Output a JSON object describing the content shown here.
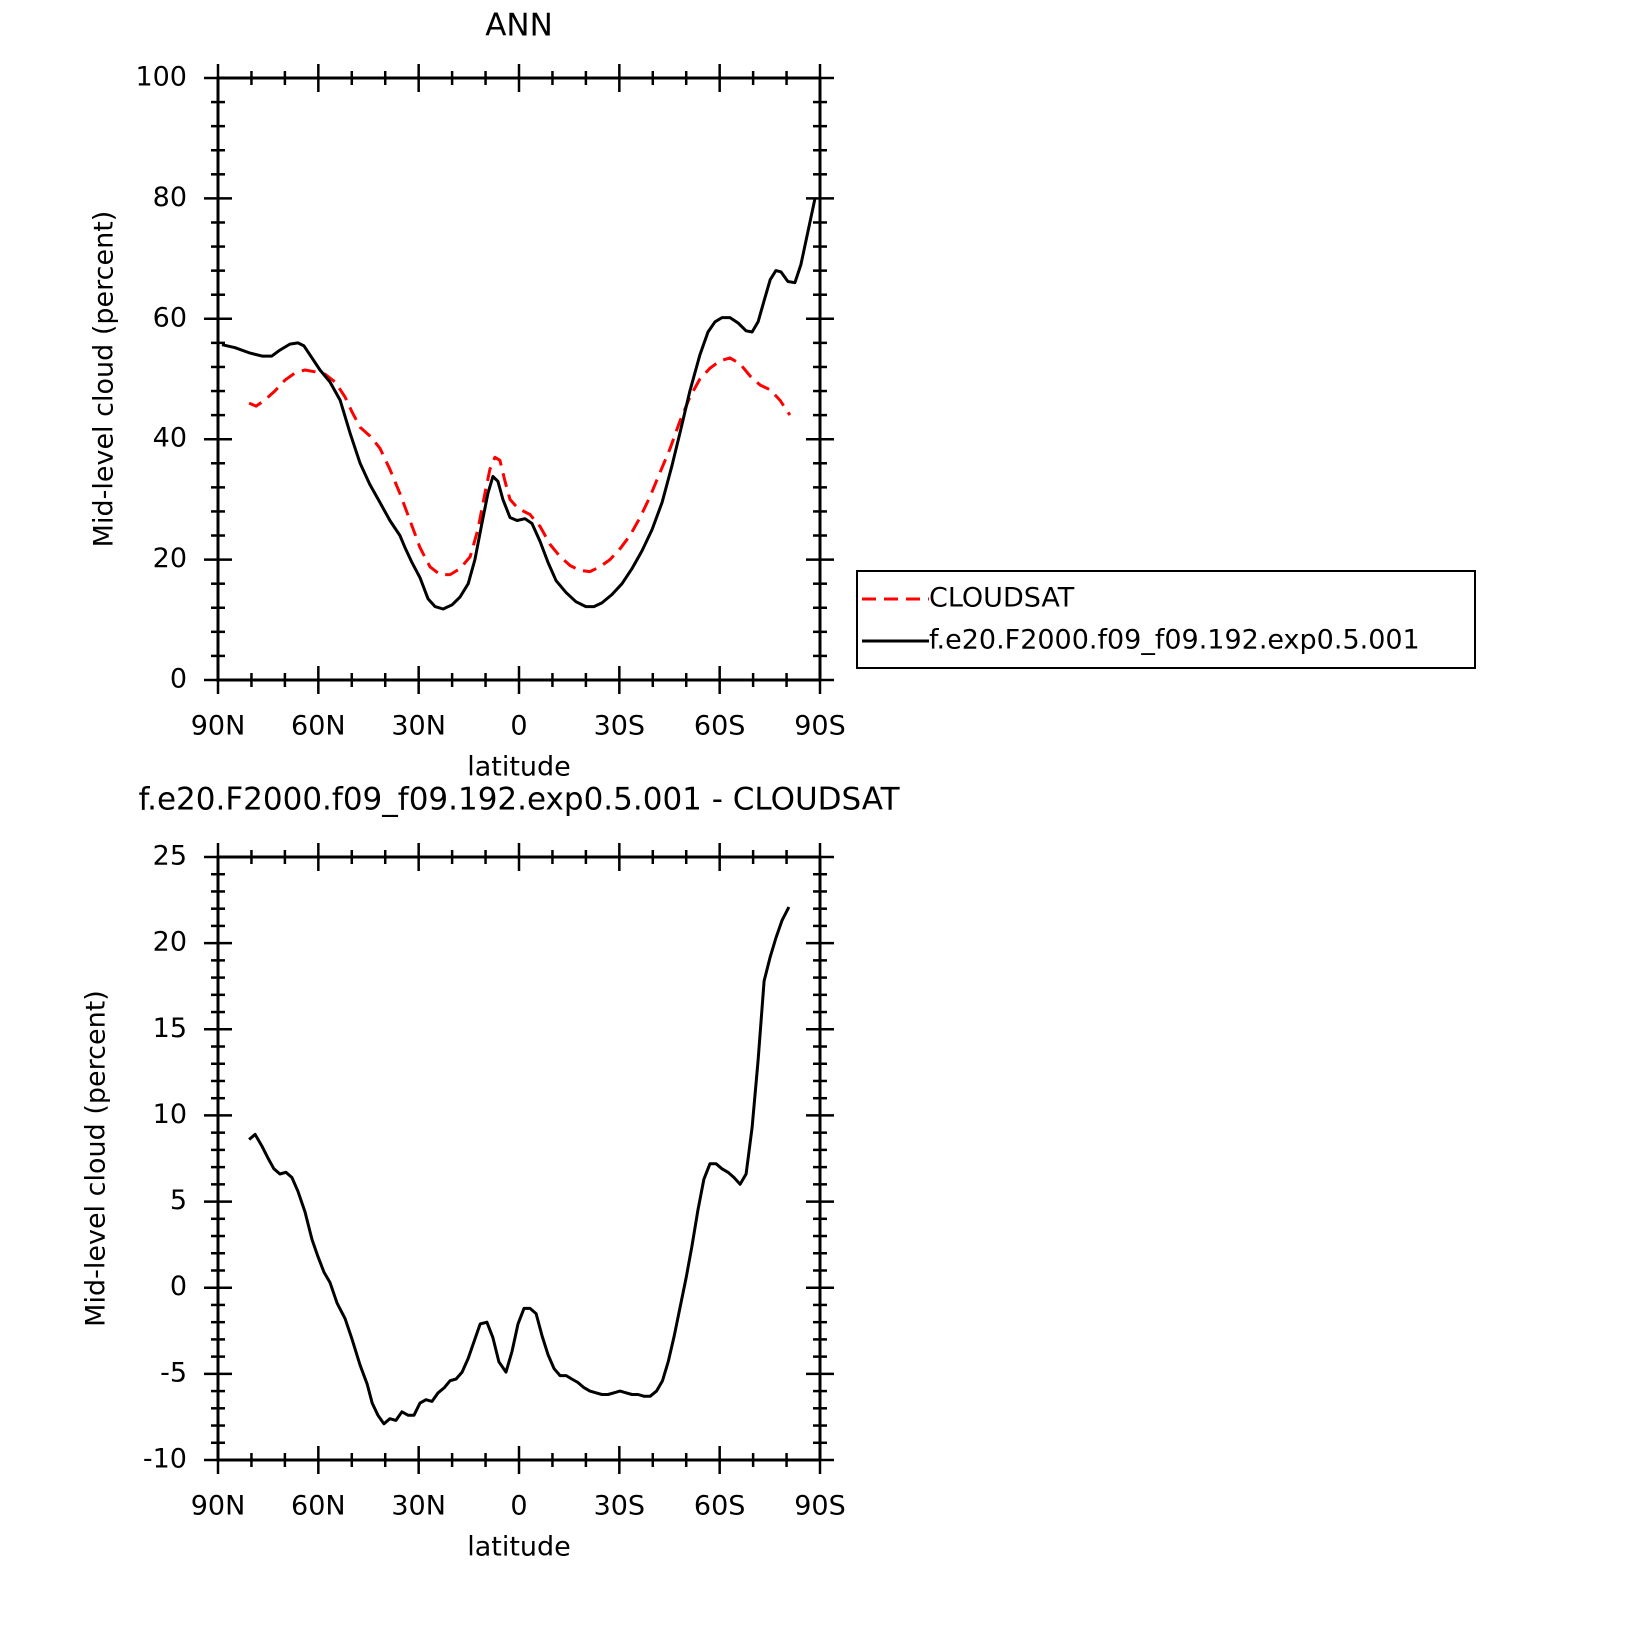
{
  "chart_data": [
    {
      "type": "line",
      "title": "ANN",
      "x_label": "latitude",
      "y_label": "Mid-level cloud (percent)",
      "xlim": [
        90,
        -90
      ],
      "xticks": [
        {
          "value": 90,
          "label": "90N"
        },
        {
          "value": 60,
          "label": "60N"
        },
        {
          "value": 30,
          "label": "30N"
        },
        0,
        {
          "value": -30,
          "label": "30S"
        },
        {
          "value": -60,
          "label": "60S"
        },
        {
          "value": -90,
          "label": "90S"
        }
      ],
      "ylim": [
        0,
        100
      ],
      "yticks": [
        0,
        20,
        40,
        60,
        80,
        100
      ],
      "legend": "right",
      "series": [
        {
          "name": "CLOUDSAT",
          "color": "#ff0000",
          "line_style": "dashed",
          "x": [
            80.7,
            78.6,
            76.0,
            73.0,
            70.0,
            67.0,
            64.0,
            61.0,
            58.0,
            55.0,
            52.0,
            49.9,
            47.5,
            44.5,
            41.6,
            38.6,
            35.6,
            32.6,
            29.6,
            26.6,
            23.6,
            20.6,
            17.6,
            14.6,
            12.3,
            10.2,
            8.7,
            7.2,
            5.7,
            4.2,
            2.7,
            0.3,
            -3.3,
            -6.3,
            -9.3,
            -12.3,
            -15.3,
            -18.2,
            -21.2,
            -24.2,
            -27.2,
            -30.2,
            -33.2,
            -36.2,
            -39.2,
            -42.2,
            -45.2,
            -48.1,
            -51.1,
            -54.1,
            -57.1,
            -60.1,
            -63.1,
            -66.1,
            -69.1,
            -72.1,
            -75.1,
            -78.0,
            -81.0
          ],
          "values": [
            46,
            45.5,
            46.5,
            48,
            49.8,
            51,
            51.5,
            51.2,
            50.8,
            49.5,
            47,
            44.5,
            42,
            40.5,
            38.5,
            35,
            31,
            26.5,
            22,
            18.8,
            17.5,
            17.5,
            18.5,
            20.5,
            25,
            31,
            35,
            37,
            36.5,
            33,
            30,
            28.5,
            27.5,
            25.5,
            22.5,
            20.5,
            19,
            18.2,
            18,
            18.8,
            20,
            21.8,
            24,
            27,
            30.5,
            34.5,
            38.5,
            43,
            47,
            50,
            51.8,
            53,
            53.5,
            52.5,
            50.5,
            49,
            48.2,
            46.5,
            44
          ]
        },
        {
          "name": "f.e20.F2000.f09_f09.192.exp0.5.001",
          "color": "#000000",
          "line_style": "solid",
          "x": [
            88.8,
            84.9,
            80.4,
            76.8,
            73.9,
            71.5,
            68.5,
            66.1,
            64.3,
            61.9,
            59.5,
            56.5,
            53.5,
            50.5,
            47.5,
            44.6,
            41.6,
            38.6,
            35.6,
            34.1,
            32.0,
            29.6,
            27.2,
            25.1,
            22.7,
            20.0,
            17.6,
            15.2,
            13.2,
            11.1,
            9.3,
            7.8,
            6.3,
            4.8,
            2.7,
            0.6,
            -1.8,
            -3.9,
            -6.3,
            -8.7,
            -11.1,
            -14.1,
            -17.0,
            -20.0,
            -22.4,
            -24.8,
            -27.8,
            -30.8,
            -33.8,
            -36.8,
            -39.8,
            -42.8,
            -45.7,
            -48.1,
            -51.1,
            -54.1,
            -56.5,
            -58.6,
            -60.7,
            -63.1,
            -65.5,
            -67.9,
            -69.7,
            -71.5,
            -73.3,
            -75.1,
            -76.8,
            -78.3,
            -80.4,
            -82.5,
            -84.3,
            -88.5
          ],
          "values": [
            55.7,
            55.2,
            54.3,
            53.8,
            53.8,
            54.8,
            55.8,
            56,
            55.5,
            53.5,
            51.5,
            49.5,
            46.5,
            41,
            36,
            32.5,
            29.5,
            26.5,
            24,
            22,
            19.5,
            17,
            13.5,
            12.2,
            11.8,
            12.5,
            13.8,
            16,
            20,
            26,
            31,
            33.8,
            33,
            30,
            27,
            26.5,
            26.8,
            26,
            23,
            19.5,
            16.5,
            14.5,
            13,
            12.2,
            12.2,
            12.8,
            14.2,
            16,
            18.5,
            21.5,
            25,
            29.5,
            35.5,
            41,
            48,
            54,
            57.8,
            59.5,
            60.2,
            60.2,
            59.3,
            58,
            57.8,
            59.5,
            63,
            66.5,
            68,
            67.8,
            66.2,
            66,
            69,
            80
          ]
        }
      ]
    },
    {
      "type": "line",
      "title": "f.e20.F2000.f09_f09.192.exp0.5.001 - CLOUDSAT",
      "x_label": "latitude",
      "y_label": "Mid-level cloud (percent)",
      "xlim": [
        90,
        -90
      ],
      "xticks": [
        {
          "value": 90,
          "label": "90N"
        },
        {
          "value": 60,
          "label": "60N"
        },
        {
          "value": 30,
          "label": "30N"
        },
        0,
        {
          "value": -30,
          "label": "30S"
        },
        {
          "value": -60,
          "label": "60S"
        },
        {
          "value": -90,
          "label": "90S"
        }
      ],
      "ylim": [
        -10,
        25
      ],
      "yticks": [
        -10,
        -5,
        0,
        5,
        10,
        15,
        20,
        25
      ],
      "series": [
        {
          "color": "#000000",
          "line_style": "solid",
          "x": [
            80.7,
            78.9,
            76.8,
            75.0,
            73.3,
            71.5,
            69.7,
            67.9,
            66.1,
            64.0,
            61.9,
            60.1,
            58.3,
            56.5,
            54.4,
            52.0,
            49.9,
            47.5,
            45.4,
            43.9,
            42.2,
            40.4,
            38.6,
            36.8,
            35.0,
            33.2,
            31.4,
            29.6,
            27.8,
            26.0,
            24.2,
            22.3,
            20.6,
            18.8,
            17.0,
            15.2,
            13.4,
            11.6,
            9.6,
            7.8,
            6.0,
            3.9,
            2.1,
            0.3,
            -1.5,
            -3.3,
            -5.1,
            -6.9,
            -8.7,
            -10.5,
            -12.3,
            -14.1,
            -15.8,
            -17.6,
            -19.4,
            -21.2,
            -23.0,
            -24.8,
            -26.6,
            -28.4,
            -30.2,
            -32.0,
            -33.8,
            -35.6,
            -37.4,
            -39.2,
            -41.1,
            -42.9,
            -44.6,
            -46.4,
            -48.2,
            -50.0,
            -51.7,
            -53.5,
            -55.3,
            -57.1,
            -58.9,
            -60.7,
            -62.5,
            -64.3,
            -66.1,
            -67.9,
            -69.7,
            -71.5,
            -73.3,
            -75.1,
            -76.8,
            -78.6,
            -80.7
          ],
          "values": [
            8.6,
            8.9,
            8.2,
            7.5,
            6.9,
            6.6,
            6.7,
            6.4,
            5.6,
            4.4,
            2.8,
            1.8,
            0.9,
            0.3,
            -0.9,
            -1.8,
            -3,
            -4.5,
            -5.6,
            -6.7,
            -7.4,
            -7.9,
            -7.6,
            -7.7,
            -7.2,
            -7.4,
            -7.4,
            -6.7,
            -6.5,
            -6.6,
            -6.1,
            -5.8,
            -5.4,
            -5.3,
            -4.9,
            -4.1,
            -3.1,
            -2.1,
            -2,
            -2.9,
            -4.3,
            -4.9,
            -3.7,
            -2.1,
            -1.2,
            -1.2,
            -1.5,
            -2.8,
            -3.9,
            -4.7,
            -5.1,
            -5.1,
            -5.3,
            -5.5,
            -5.8,
            -6,
            -6.1,
            -6.2,
            -6.2,
            -6.1,
            -6,
            -6.1,
            -6.2,
            -6.2,
            -6.3,
            -6.3,
            -6,
            -5.4,
            -4.3,
            -2.8,
            -1.1,
            0.6,
            2.4,
            4.5,
            6.3,
            7.2,
            7.2,
            6.9,
            6.7,
            6.4,
            6,
            6.6,
            9.3,
            13.2,
            17.8,
            19.2,
            20.3,
            21.3,
            22.1
          ]
        }
      ]
    }
  ]
}
